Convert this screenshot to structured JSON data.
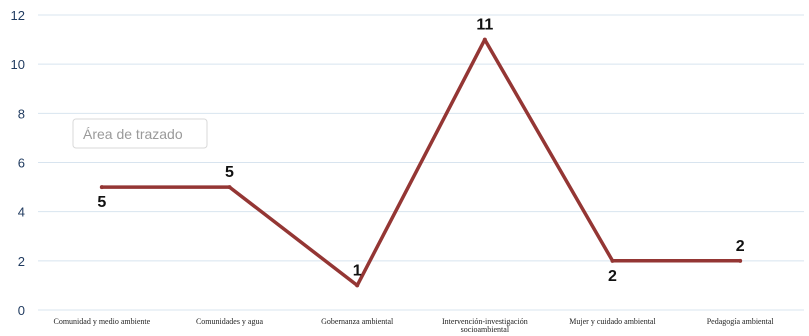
{
  "chart_data": {
    "type": "line",
    "categories": [
      [
        "Comunidad y medio ambiente"
      ],
      [
        "Comunidades y agua"
      ],
      [
        "Gobernanza ambiental"
      ],
      [
        "Intervención-investigación",
        "socioambiental"
      ],
      [
        "Mujer y cuidado ambiental"
      ],
      [
        "Pedagogía ambiental"
      ]
    ],
    "values": [
      5,
      5,
      1,
      11,
      2,
      2
    ],
    "ylim": [
      0,
      12
    ],
    "yticks": [
      0,
      2,
      4,
      6,
      8,
      10,
      12
    ],
    "grid": true,
    "legend": "none",
    "line_color": "#943634",
    "title": "",
    "xlabel": "",
    "ylabel": ""
  },
  "tooltip": {
    "text": "Área de trazado"
  }
}
